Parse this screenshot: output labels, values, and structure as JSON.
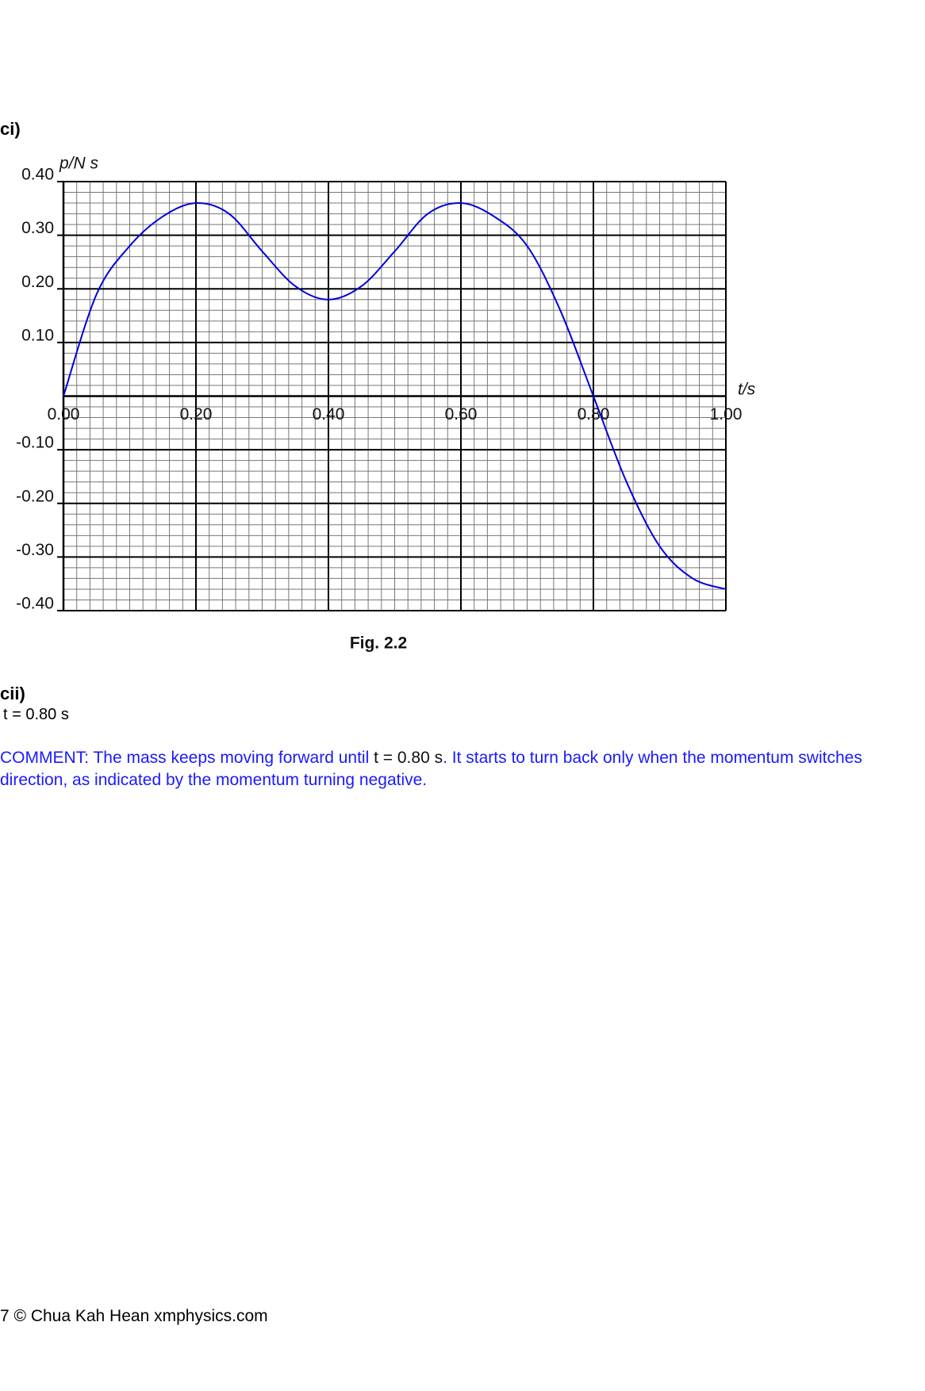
{
  "part1_label": "ci)",
  "chart_data": {
    "type": "line",
    "y_label": "p/N s",
    "x_label": "t/s",
    "x": [
      0,
      0.05,
      0.1,
      0.15,
      0.2,
      0.25,
      0.3,
      0.35,
      0.4,
      0.45,
      0.5,
      0.55,
      0.6,
      0.65,
      0.7,
      0.75,
      0.8,
      0.85,
      0.9,
      0.95,
      1.0
    ],
    "series": [
      {
        "color": "#0000dd",
        "values": [
          0,
          0.19,
          0.28,
          0.335,
          0.36,
          0.34,
          0.27,
          0.205,
          0.18,
          0.205,
          0.27,
          0.34,
          0.36,
          0.335,
          0.28,
          0.16,
          0,
          -0.16,
          -0.28,
          -0.34,
          -0.36
        ]
      }
    ],
    "xlim": [
      0,
      1.0
    ],
    "ylim": [
      -0.4,
      0.4
    ],
    "xticks": [
      {
        "value": 0,
        "label": "0.00"
      },
      {
        "value": 0.2,
        "label": "0.20"
      },
      {
        "value": 0.4,
        "label": "0.40"
      },
      {
        "value": 0.6,
        "label": "0.60"
      },
      {
        "value": 0.8,
        "label": "0.80"
      },
      {
        "value": 1.0,
        "label": "1.00"
      }
    ],
    "yticks": [
      {
        "value": 0.4,
        "label": "0.40"
      },
      {
        "value": 0.3,
        "label": "0.30"
      },
      {
        "value": 0.2,
        "label": "0.20"
      },
      {
        "value": 0.1,
        "label": "0.10"
      },
      {
        "value": -0.1,
        "label": "-0.10"
      },
      {
        "value": -0.2,
        "label": "-0.20"
      },
      {
        "value": -0.3,
        "label": "-0.30"
      },
      {
        "value": -0.4,
        "label": "-0.40"
      }
    ],
    "grid": true,
    "caption": "Fig. 2.2"
  },
  "part2_label": "cii)",
  "answer": "t = 0.80 s",
  "comment": {
    "before": "COMMENT: The mass keeps moving forward until",
    "math": "t = 0.80 s",
    "after": ". It starts to turn back only when the momentum switches direction, as indicated by the momentum turning negative."
  },
  "footer": "7 © Chua Kah Hean xmphysics.com"
}
